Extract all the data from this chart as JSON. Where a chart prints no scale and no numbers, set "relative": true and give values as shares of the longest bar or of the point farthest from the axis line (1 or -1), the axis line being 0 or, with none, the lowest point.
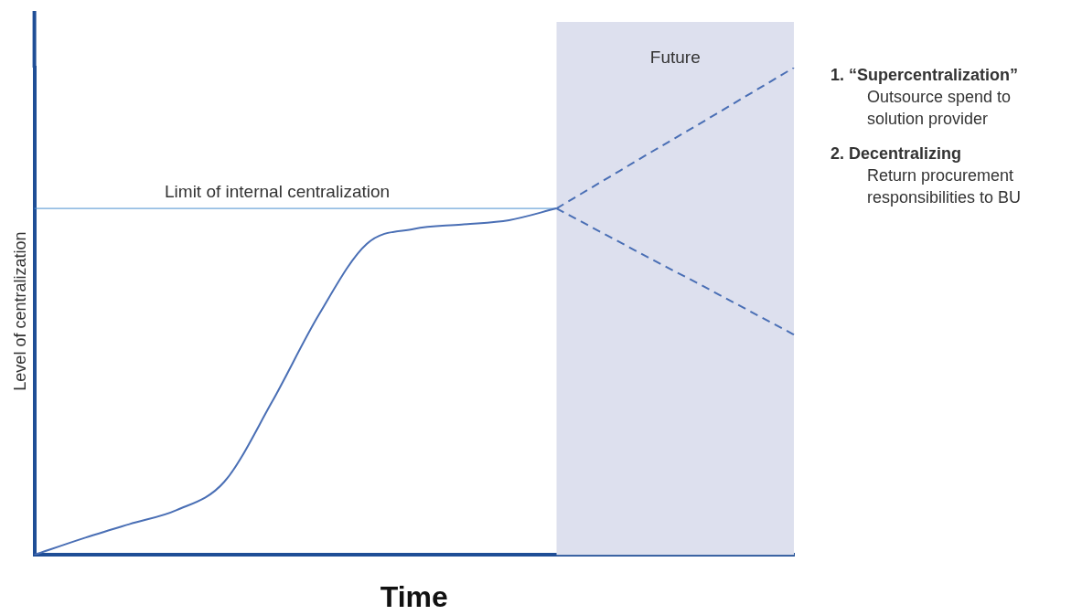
{
  "chart_data": {
    "type": "line",
    "relative": true,
    "xlabel": "Time",
    "ylabel": "Level of centralization",
    "categories": [
      null,
      null,
      null,
      null,
      null,
      null,
      null,
      null,
      null,
      null,
      null,
      null,
      null,
      null,
      null,
      null,
      null
    ],
    "series": [
      {
        "color": "#4a6fb5",
        "line_style": "solid",
        "values": [
          0,
          0.033,
          0.063,
          0.092,
          0.15,
          0.313,
          0.494,
          0.638,
          0.669,
          0.678,
          0.687,
          0.711,
          null,
          null,
          null,
          null,
          null
        ]
      },
      {
        "color": "#4a6fb5",
        "line_style": "dashed",
        "values": [
          null,
          null,
          null,
          null,
          null,
          null,
          null,
          null,
          null,
          null,
          null,
          0.711,
          0.769,
          0.827,
          0.884,
          0.942,
          1.0
        ]
      },
      {
        "color": "#4a6fb5",
        "line_style": "dashed",
        "values": [
          null,
          null,
          null,
          null,
          null,
          null,
          null,
          null,
          null,
          null,
          null,
          0.711,
          0.659,
          0.607,
          0.556,
          0.504,
          0.452
        ]
      }
    ],
    "ref_lines": [
      {
        "axis": "y",
        "value": 0.711,
        "label": "Limit of internal centralization",
        "color": "#4a90d0"
      }
    ],
    "annotations": [
      "Future",
      "1. “Supercentralization”",
      "Outsource spend to solution provider",
      "2. Decentralizing",
      "Return procurement responsibilities to BU"
    ],
    "grid": false,
    "legend": false,
    "marker": "none"
  }
}
